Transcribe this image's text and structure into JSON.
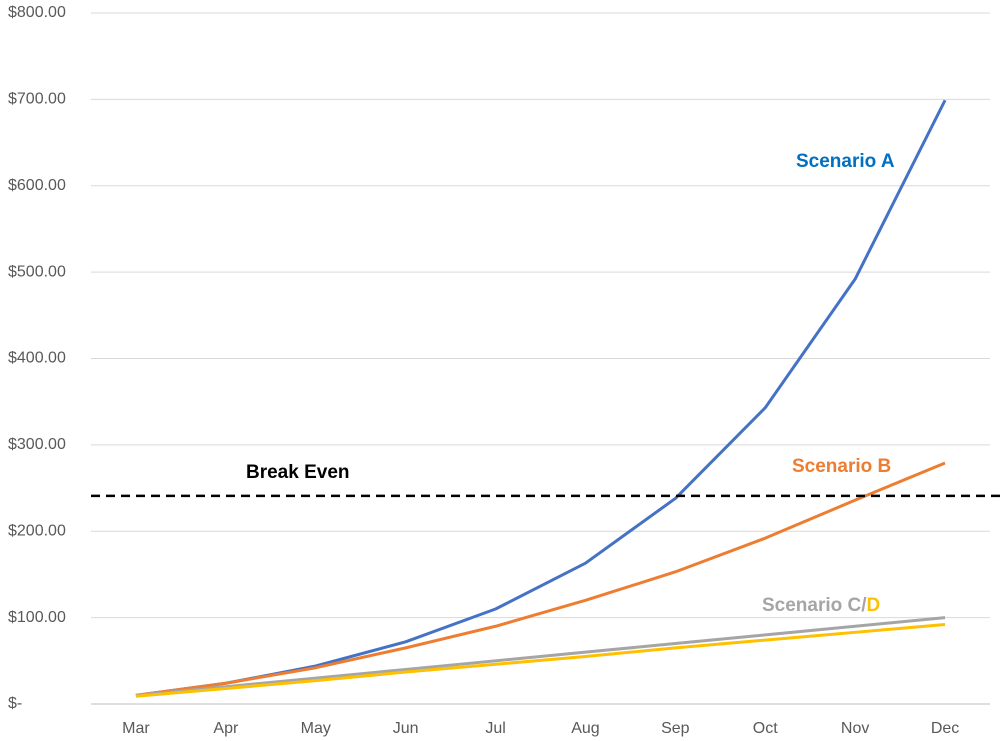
{
  "chart_data": {
    "type": "line",
    "categories": [
      "Mar",
      "Apr",
      "May",
      "Jun",
      "Jul",
      "Aug",
      "Sep",
      "Oct",
      "Nov",
      "Dec"
    ],
    "series": [
      {
        "color": "#4472c4",
        "values": [
          10,
          24,
          44,
          72,
          110,
          163,
          238,
          343,
          492,
          699
        ]
      },
      {
        "color": "#ed7d31",
        "values": [
          10,
          24,
          42,
          65,
          90,
          120,
          153,
          192,
          236,
          279
        ]
      },
      {
        "color": "#a5a5a5",
        "values": [
          10,
          20,
          30,
          40,
          50,
          60,
          70,
          80,
          90,
          100
        ]
      },
      {
        "color": "#ffc000",
        "values": [
          9,
          18,
          27,
          37,
          46,
          55,
          65,
          74,
          83,
          92
        ]
      }
    ],
    "ylim": [
      0,
      800
    ],
    "yticks": [
      {
        "value": 0,
        "label": "$-"
      },
      {
        "value": 100,
        "label": "$100.00"
      },
      {
        "value": 200,
        "label": "$200.00"
      },
      {
        "value": 300,
        "label": "$300.00"
      },
      {
        "value": 400,
        "label": "$400.00"
      },
      {
        "value": 500,
        "label": "$500.00"
      },
      {
        "value": 600,
        "label": "$600.00"
      },
      {
        "value": 700,
        "label": "$700.00"
      },
      {
        "value": 800,
        "label": "$800.00"
      }
    ],
    "grid": true,
    "break_even": {
      "label": "Break Even",
      "value": 241
    },
    "annotations": [
      {
        "text": "Scenario A",
        "color": "#0070c0"
      },
      {
        "text": "Scenario B",
        "color": "#ed7d31"
      },
      {
        "text": "Scenario C/",
        "color": "#a5a5a5"
      },
      {
        "text": "D",
        "color": "#ffc000"
      }
    ]
  }
}
